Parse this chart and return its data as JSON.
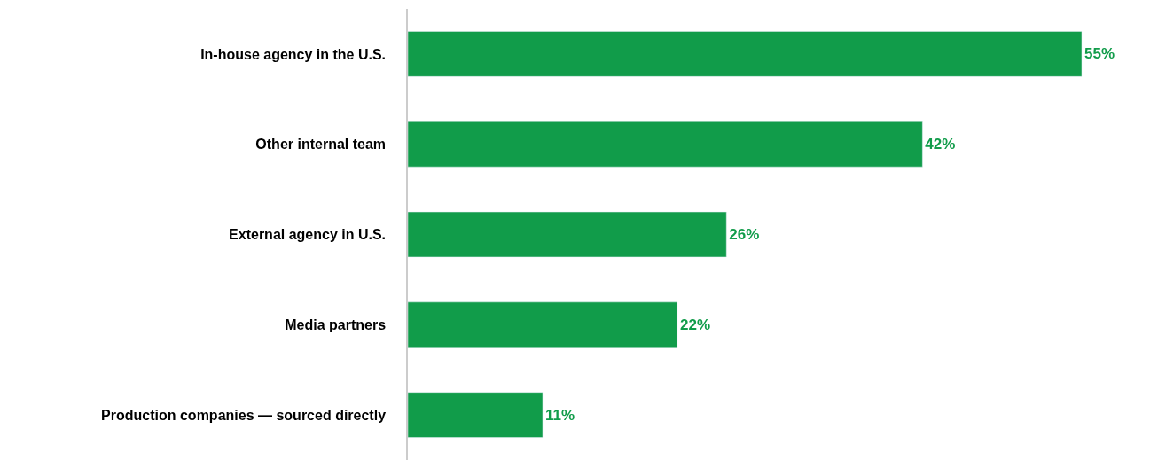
{
  "chart_data": {
    "type": "bar",
    "orientation": "horizontal",
    "categories": [
      "In-house agency in the U.S.",
      "Other internal team",
      "External agency in U.S.",
      "Media partners",
      "Production companies — sourced directly"
    ],
    "values": [
      55,
      42,
      26,
      22,
      11
    ],
    "value_labels": [
      "55%",
      "42%",
      "26%",
      "22%",
      "11%"
    ],
    "color": "#119c4a"
  }
}
